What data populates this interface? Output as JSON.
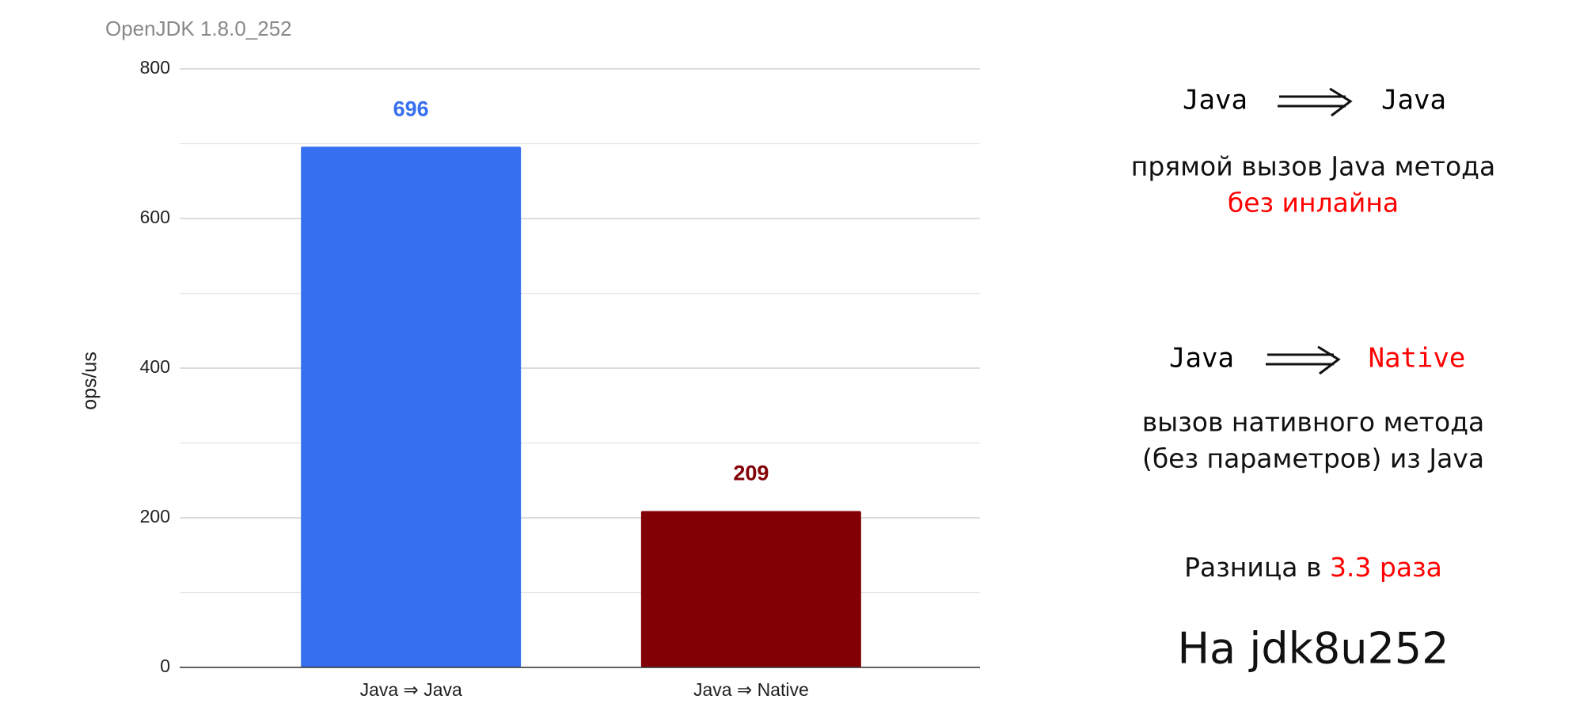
{
  "chart_data": {
    "type": "bar",
    "title": "OpenJDK 1.8.0_252",
    "y_label": "ops/us",
    "categories": [
      "Java ⇒ Java",
      "Java ⇒ Native"
    ],
    "values": [
      696,
      209
    ],
    "colors": [
      "#3670f0",
      "#820005"
    ],
    "ylim": [
      0,
      800
    ],
    "yticks": [
      0,
      200,
      400,
      600,
      800
    ],
    "minor_yticks": [
      100,
      300,
      500,
      700
    ],
    "grid": true
  },
  "notes": {
    "first": {
      "from": "Java",
      "to": "Java",
      "line1": "прямой вызов Java метода",
      "line2": "без инлайна"
    },
    "second": {
      "from": "Java",
      "to": "Native",
      "line1": "вызов нативного метода",
      "line2": "(без параметров) из Java"
    },
    "difference": {
      "text": "Разница в ",
      "highlight": "3.3 раза"
    },
    "footer": "На jdk8u252"
  }
}
